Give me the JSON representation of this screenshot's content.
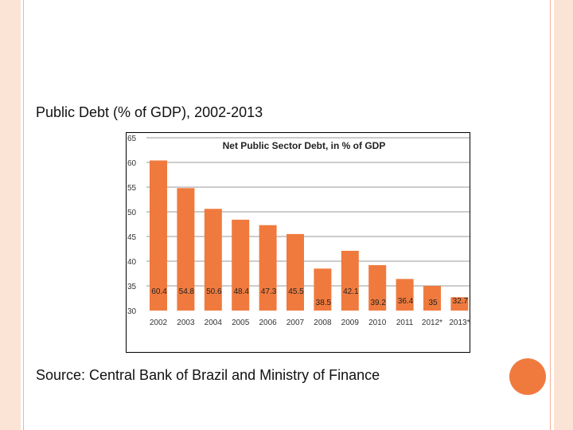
{
  "slide": {
    "title": "Public Debt (% of GDP), 2002-2013",
    "source": "Source: Central Bank of Brazil and Ministry of Finance"
  },
  "colors": {
    "bar": "#f07a3e",
    "accent": "#f07a3e",
    "band": "#fbe3d6"
  },
  "chart_data": {
    "type": "bar",
    "title": "Net Public Sector Debt, in % of GDP",
    "categories": [
      "2002",
      "2003",
      "2004",
      "2005",
      "2006",
      "2007",
      "2008",
      "2009",
      "2010",
      "2011",
      "2012*",
      "2013*"
    ],
    "values": [
      60.4,
      54.8,
      50.6,
      48.4,
      47.3,
      45.5,
      38.5,
      42.1,
      39.2,
      36.4,
      35,
      32.7
    ],
    "value_labels": [
      "60.4",
      "54.8",
      "50.6",
      "48.4",
      "47.3",
      "45.5",
      "38.5",
      "42.1",
      "39.2",
      "36.4",
      "35",
      "32.7"
    ],
    "yticks": [
      "65",
      "60",
      "55",
      "50",
      "45",
      "40",
      "35",
      "30"
    ],
    "ylim": [
      30,
      65
    ],
    "xlabel": "",
    "ylabel": "",
    "grid": true
  }
}
